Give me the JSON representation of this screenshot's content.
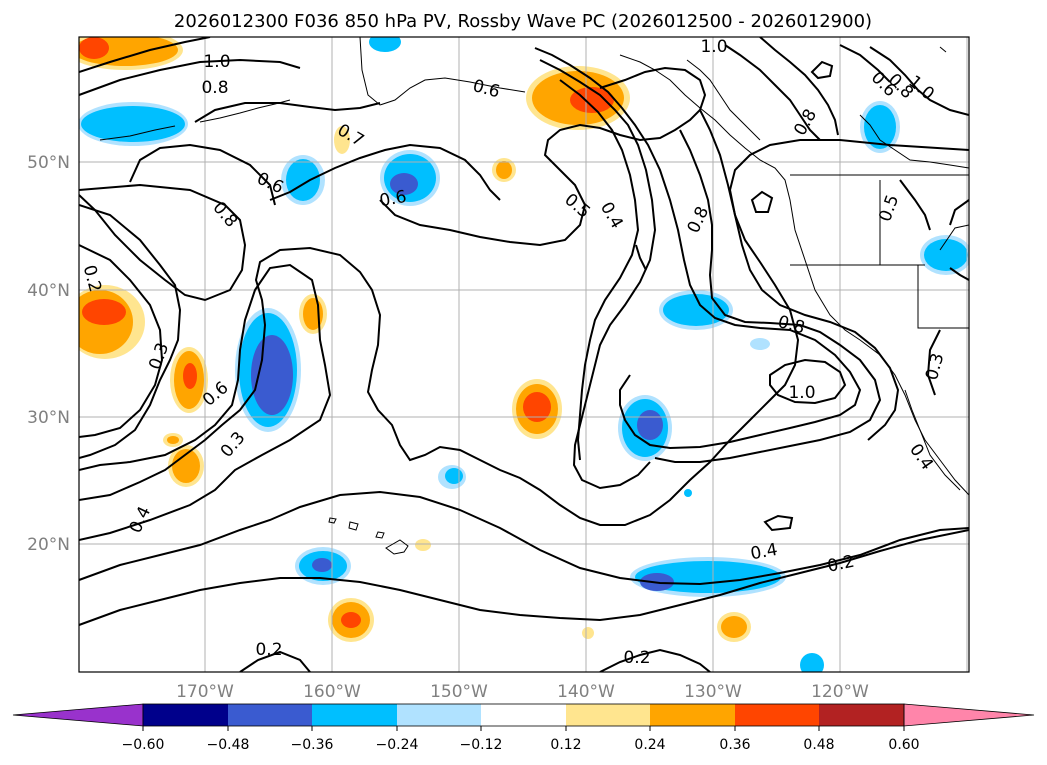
{
  "title": "2026012300 F036 850 hPa PV, Rossby Wave PC (2026012500 - 2026012900)",
  "map": {
    "lat_labels": [
      "50°N",
      "40°N",
      "30°N",
      "20°N"
    ],
    "lon_labels": [
      "170°W",
      "160°W",
      "150°W",
      "140°W",
      "130°W",
      "120°W"
    ]
  },
  "contour_labels": [
    "1.0",
    "0.8",
    "0.7",
    "0.6",
    "0.6",
    "0.6",
    "1.0",
    "0.6",
    "0.5",
    "0.4",
    "0.8",
    "0.8",
    "1.0",
    "0.8",
    "0.8",
    "0.5",
    "0.2",
    "0.3",
    "0.6",
    "0.3",
    "0.4",
    "0.8",
    "1.0",
    "0.3",
    "0.4",
    "0.4",
    "0.2",
    "0.2",
    "0.2"
  ],
  "colorbar": {
    "ticks": [
      "−0.60",
      "−0.48",
      "−0.36",
      "−0.24",
      "−0.12",
      "0.12",
      "0.24",
      "0.36",
      "0.48",
      "0.60"
    ],
    "colors": [
      "#9932cc",
      "#00008b",
      "#3a5bd0",
      "#00bfff",
      "#b0e2ff",
      "#ffffff",
      "#ffe58f",
      "#ffa500",
      "#ff4500",
      "#b22222",
      "#ff85aa"
    ]
  },
  "fill_colors": {
    "neg1": "#b0e2ff",
    "neg2": "#00bfff",
    "neg3": "#3a5bd0",
    "pos1": "#ffe58f",
    "pos2": "#ffa500",
    "pos3": "#ff4500"
  }
}
